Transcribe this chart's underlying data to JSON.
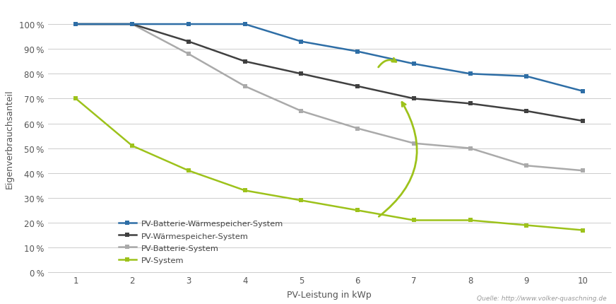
{
  "x": [
    1,
    2,
    3,
    4,
    5,
    6,
    7,
    8,
    9,
    10
  ],
  "pv_system": [
    70,
    51,
    41,
    33,
    29,
    25,
    21,
    21,
    19,
    17
  ],
  "pv_batterie": [
    100,
    100,
    88,
    75,
    65,
    58,
    52,
    50,
    43,
    41
  ],
  "pv_waerme": [
    100,
    100,
    93,
    85,
    80,
    75,
    70,
    68,
    65,
    61
  ],
  "pv_batterie_waerme": [
    100,
    100,
    100,
    100,
    93,
    89,
    84,
    80,
    79,
    73
  ],
  "color_pv": "#9dc21b",
  "color_batterie": "#aaaaaa",
  "color_waerme": "#404040",
  "color_batterie_waerme": "#2e6ea6",
  "label_pv": "PV-System",
  "label_batterie": "PV-Batterie-System",
  "label_waerme": "PV-Wärmespeicher-System",
  "label_batterie_waerme": "PV-Batterie-Wärmespeicher-System",
  "xlabel": "PV-Leistung in kWp",
  "ylabel": "Eigenverbrauchsanteil",
  "source": "Quelle: http://www.volker-quaschning.de",
  "bg_color": "#ffffff",
  "grid_color": "#cccccc",
  "ylim": [
    0,
    108
  ],
  "yticks": [
    0,
    10,
    20,
    30,
    40,
    50,
    60,
    70,
    80,
    90,
    100
  ],
  "tick_label_color": "#555555",
  "line_width": 1.8,
  "marker_size": 4.5
}
